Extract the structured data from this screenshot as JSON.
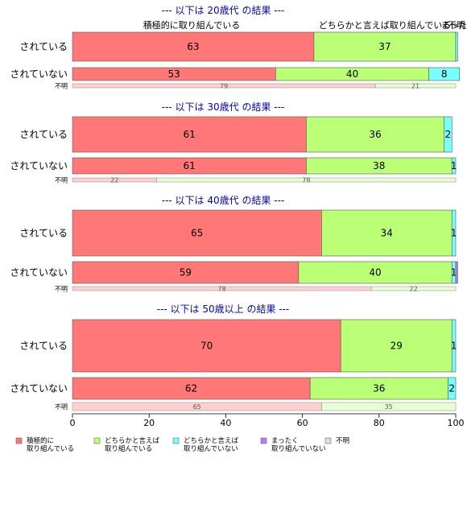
{
  "header_labels": {
    "col1": "積極的に取り組んでいる",
    "col2": "どちらかと言えば取り組んでいる",
    "col3": "まった",
    "col4": "不明"
  },
  "colors": {
    "積極的に取り組んでいる": "#ff7777",
    "どちらかと言えば取り組んでいる": "#bbff77",
    "どちらかと言えば取り組んでいない": "#77ffff",
    "まったく取り組んでいない": "#bb77ff",
    "不明": "#dddddd",
    "title": "#0000cc"
  },
  "chart_data": {
    "type": "bar",
    "orientation": "horizontal",
    "stacked": true,
    "xlim": [
      0,
      100
    ],
    "x_ticks": [
      0,
      20,
      40,
      60,
      80,
      100
    ],
    "series_names": [
      "積極的に取り組んでいる",
      "どちらかと言えば取り組んでいる",
      "どちらかと言えば取り組んでいない",
      "まったく取り組んでいない",
      "不明"
    ],
    "legend": {
      "placement": "bottom",
      "entries": [
        {
          "line1": "積極的に",
          "line2": "取り組んでいる"
        },
        {
          "line1": "どちらかと言えば",
          "line2": "取り組んでいる"
        },
        {
          "line1": "どちらかと言えば",
          "line2": "取り組んでいない"
        },
        {
          "line1": "まったく",
          "line2": "取り組んでいない"
        },
        {
          "line1": "不明",
          "line2": ""
        }
      ]
    },
    "panels": [
      {
        "title": "--- 以下は 20歳代 の結果 ---",
        "rows": [
          {
            "label": "されている",
            "values": [
              63,
              37,
              0.5,
              0,
              0
            ],
            "labels": [
              "63",
              "37",
              "",
              "",
              ""
            ]
          },
          {
            "label": "されていない",
            "values": [
              53,
              40,
              8,
              0,
              0
            ],
            "labels": [
              "53",
              "40",
              "8",
              "",
              ""
            ]
          },
          {
            "label": "不明",
            "values": [
              79,
              21,
              0,
              0,
              0
            ],
            "labels": [
              "79",
              "21",
              "",
              "",
              ""
            ]
          }
        ]
      },
      {
        "title": "--- 以下は 30歳代 の結果 ---",
        "rows": [
          {
            "label": "されている",
            "values": [
              61,
              36,
              2,
              0,
              0
            ],
            "labels": [
              "61",
              "36",
              "2",
              "",
              ""
            ]
          },
          {
            "label": "されていない",
            "values": [
              61,
              38,
              1,
              0,
              0
            ],
            "labels": [
              "61",
              "38",
              "1",
              "",
              ""
            ]
          },
          {
            "label": "不明",
            "values": [
              22,
              78,
              0,
              0,
              0
            ],
            "labels": [
              "22",
              "78",
              "",
              "",
              ""
            ]
          }
        ]
      },
      {
        "title": "--- 以下は 40歳代 の結果 ---",
        "rows": [
          {
            "label": "されている",
            "values": [
              65,
              34,
              1,
              0,
              0
            ],
            "labels": [
              "65",
              "34",
              "1",
              "",
              ""
            ]
          },
          {
            "label": "されていない",
            "values": [
              59,
              40,
              1,
              0.5,
              0
            ],
            "labels": [
              "59",
              "40",
              "1",
              "",
              ""
            ]
          },
          {
            "label": "不明",
            "values": [
              78,
              22,
              0,
              0,
              0
            ],
            "labels": [
              "78",
              "22",
              "",
              "",
              ""
            ]
          }
        ]
      },
      {
        "title": "--- 以下は 50歳以上 の結果 ---",
        "rows": [
          {
            "label": "されている",
            "values": [
              70,
              29,
              1,
              0,
              0
            ],
            "labels": [
              "70",
              "29",
              "1",
              "",
              ""
            ]
          },
          {
            "label": "されていない",
            "values": [
              62,
              36,
              2,
              0,
              0
            ],
            "labels": [
              "62",
              "36",
              "2",
              "",
              ""
            ]
          },
          {
            "label": "不明",
            "values": [
              65,
              35,
              0,
              0,
              0
            ],
            "labels": [
              "65",
              "35",
              "",
              "",
              ""
            ]
          }
        ]
      }
    ]
  }
}
